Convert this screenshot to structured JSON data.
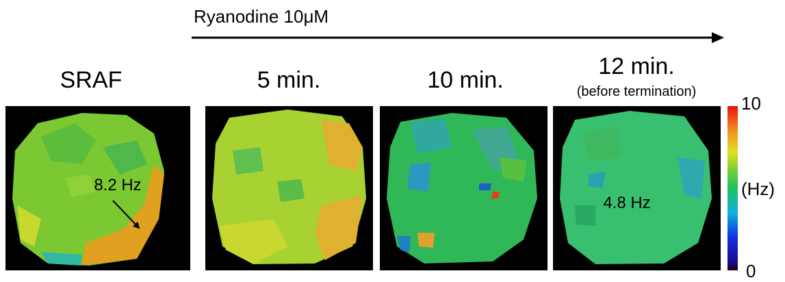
{
  "treatment": "Ryanodine 10μM",
  "panels": [
    {
      "title": "SRAF",
      "annotation": "8.2 Hz"
    },
    {
      "title": "5 min."
    },
    {
      "title": "10 min."
    },
    {
      "title": "12 min.",
      "subtitle": "(before termination)",
      "annotation": "4.8 Hz"
    }
  ],
  "colorbar": {
    "max": 10,
    "unit": "(Hz)",
    "min": 0
  }
}
